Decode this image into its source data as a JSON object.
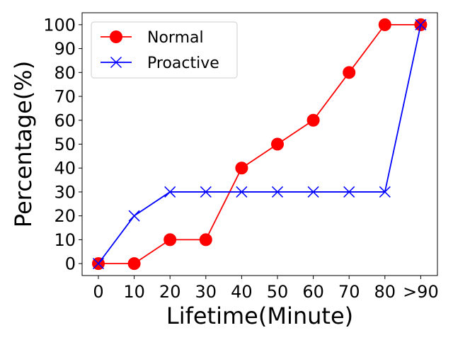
{
  "chart_data": {
    "type": "line",
    "title": "",
    "xlabel": "Lifetime(Minute)",
    "ylabel": "Percentage(%)",
    "categories": [
      "0",
      "10",
      "20",
      "30",
      "40",
      "50",
      "60",
      "70",
      "80",
      ">90"
    ],
    "ylim": [
      -5,
      105
    ],
    "yticks": [
      0,
      10,
      20,
      30,
      40,
      50,
      60,
      70,
      80,
      90,
      100
    ],
    "legend_position": "top-left",
    "series": [
      {
        "name": "Normal",
        "color": "#ff0000",
        "marker": "circle",
        "values": [
          0,
          0,
          10,
          10,
          40,
          50,
          60,
          80,
          100,
          100
        ]
      },
      {
        "name": "Proactive",
        "color": "#0000ff",
        "marker": "x",
        "values": [
          0,
          20,
          30,
          30,
          30,
          30,
          30,
          30,
          30,
          100
        ]
      }
    ]
  }
}
